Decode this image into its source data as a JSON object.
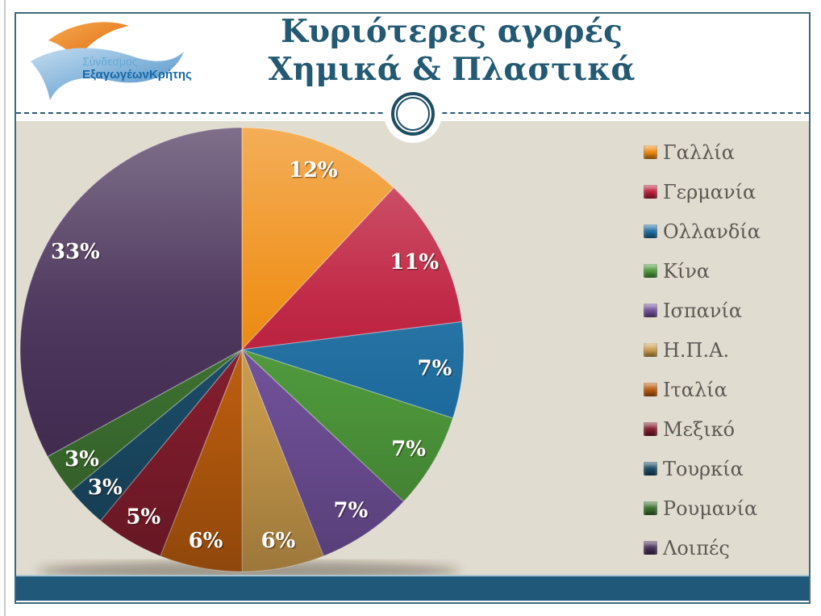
{
  "slide": {
    "title_line1": "Κυριότερες αγορές",
    "title_line2": "Χημικά & Πλαστικά",
    "logo_line1": "Σύνδεσμος",
    "logo_line2": "ΕξαγωγέωνΚρήτης"
  },
  "theme": {
    "content_background": "#E1DCD0",
    "frame_border": "#40697A",
    "title_color": "#235972",
    "bottom_bar_color": "#1F5878",
    "dashed_line_color": "#2B5B72",
    "legend_text_color": "#5A5953",
    "percent_label_color": "#FFFFFF",
    "logo_orange": "#E87A1E",
    "logo_blue": "#5D9BC8"
  },
  "chart_data": {
    "type": "pie",
    "title": "Κυριότερες αγορές Χημικά & Πλαστικά",
    "legend_position": "right",
    "start_angle_deg": 0,
    "direction": "clockwise",
    "label_format": "percent",
    "slices": [
      {
        "label": "Γαλλία",
        "value": 12,
        "color": "#EF8B10"
      },
      {
        "label": "Γερμανία",
        "value": 11,
        "color": "#BE1E3D"
      },
      {
        "label": "Ολλανδία",
        "value": 7,
        "color": "#1F6FA3"
      },
      {
        "label": "Κίνα",
        "value": 7,
        "color": "#4F9A3C"
      },
      {
        "label": "Ισπανία",
        "value": 7,
        "color": "#71519B"
      },
      {
        "label": "Η.Π.Α.",
        "value": 6,
        "color": "#CD9D4D"
      },
      {
        "label": "Ιταλία",
        "value": 6,
        "color": "#BC5D0E"
      },
      {
        "label": "Μεξικό",
        "value": 5,
        "color": "#841D2E"
      },
      {
        "label": "Τουρκία",
        "value": 3,
        "color": "#1B4B66"
      },
      {
        "label": "Ρουμανία",
        "value": 3,
        "color": "#3C7030"
      },
      {
        "label": "Λοιπές",
        "value": 33,
        "color": "#483158"
      }
    ]
  }
}
